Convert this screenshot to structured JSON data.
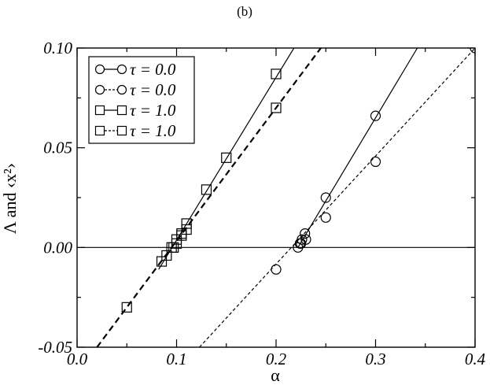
{
  "chart_data": {
    "type": "line",
    "panel_label": "(b)",
    "xlabel": "α",
    "ylabel": "Λ  and  ‹x²›",
    "xlim": [
      0.0,
      0.4
    ],
    "ylim": [
      -0.05,
      0.1
    ],
    "x_ticks": [
      0.0,
      0.1,
      0.2,
      0.3,
      0.4
    ],
    "x_tick_labels": [
      "0.0",
      "0.1",
      "0.2",
      "0.3",
      "0.4"
    ],
    "y_ticks": [
      -0.05,
      0.0,
      0.05,
      0.1
    ],
    "y_tick_labels": [
      "-0.05",
      "0.00",
      "0.05",
      "0.10"
    ],
    "zero_line": true,
    "legend_position": "top-left",
    "series": [
      {
        "name": "τ = 0.0",
        "marker": "circle",
        "line": "solid",
        "points": [
          [
            0.222,
            0.0
          ],
          [
            0.224,
            0.002
          ],
          [
            0.226,
            0.004
          ],
          [
            0.229,
            0.007
          ],
          [
            0.23,
            0.004
          ],
          [
            0.25,
            0.025
          ],
          [
            0.3,
            0.066
          ]
        ],
        "line_ends": [
          [
            0.222,
            0.0
          ],
          [
            0.342,
            0.1
          ]
        ]
      },
      {
        "name": "τ = 0.0",
        "marker": "circle",
        "line": "dashed",
        "points": [
          [
            0.2,
            -0.011
          ],
          [
            0.225,
            0.002
          ],
          [
            0.25,
            0.015
          ],
          [
            0.3,
            0.043
          ],
          [
            0.4,
            0.1
          ]
        ],
        "line_ends": [
          [
            0.123,
            -0.05
          ],
          [
            0.4,
            0.1
          ]
        ]
      },
      {
        "name": "τ = 1.0",
        "marker": "square",
        "line": "solid",
        "points": [
          [
            0.097,
            0.0
          ],
          [
            0.1,
            0.002
          ],
          [
            0.105,
            0.006
          ],
          [
            0.11,
            0.009
          ],
          [
            0.11,
            0.012
          ],
          [
            0.13,
            0.029
          ],
          [
            0.15,
            0.045
          ],
          [
            0.2,
            0.087
          ]
        ],
        "line_ends": [
          [
            0.082,
            -0.011
          ],
          [
            0.218,
            0.1
          ]
        ]
      },
      {
        "name": "τ = 1.0",
        "marker": "square",
        "line": "dashed",
        "points": [
          [
            0.05,
            -0.03
          ],
          [
            0.085,
            -0.007
          ],
          [
            0.09,
            -0.004
          ],
          [
            0.095,
            0.0
          ],
          [
            0.1,
            0.004
          ],
          [
            0.105,
            0.007
          ],
          [
            0.2,
            0.07
          ]
        ],
        "line_ends": [
          [
            0.02,
            -0.05
          ],
          [
            0.245,
            0.1
          ]
        ]
      }
    ]
  }
}
